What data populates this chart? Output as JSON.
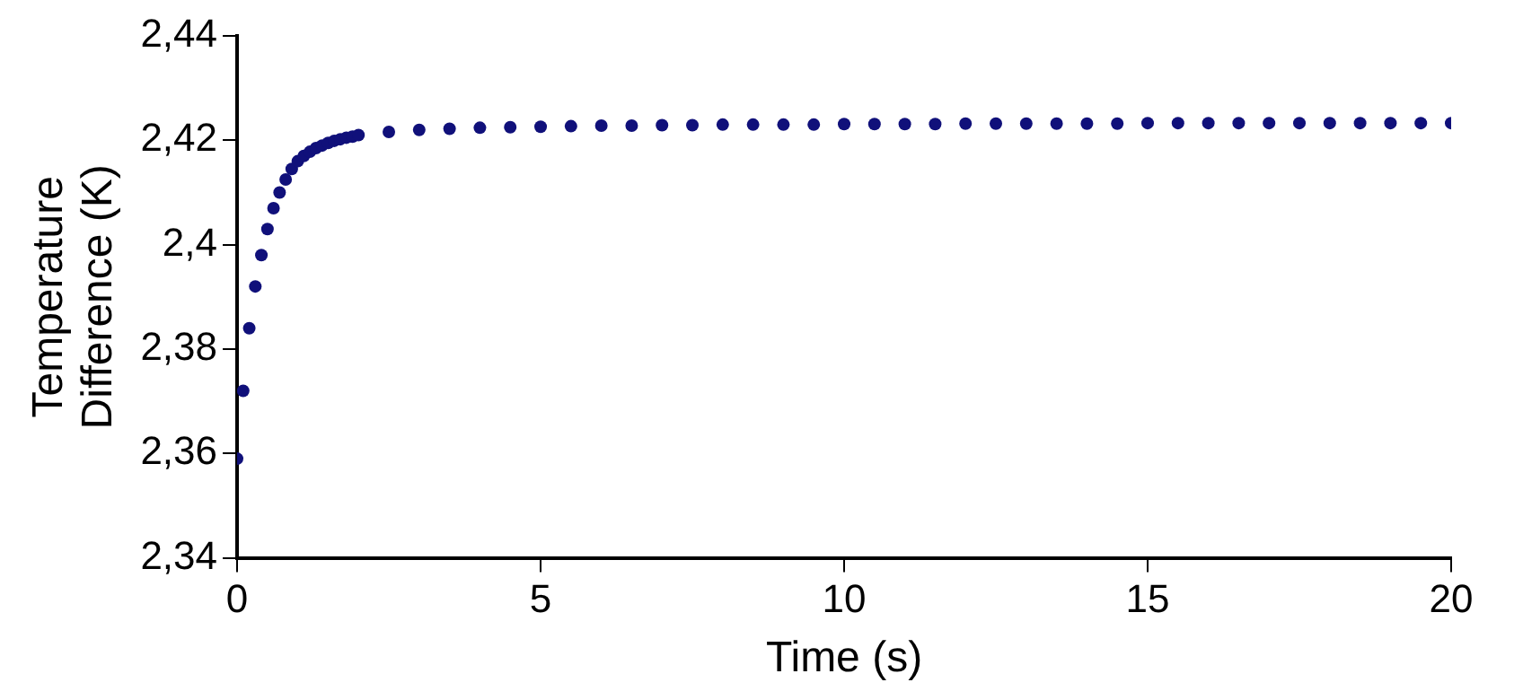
{
  "chart_data": {
    "type": "scatter",
    "xlabel": "Time (s)",
    "ylabel": "Temperature Difference (K)",
    "x": [
      0,
      0.1,
      0.2,
      0.3,
      0.4,
      0.5,
      0.6,
      0.7,
      0.8,
      0.9,
      1,
      1.1,
      1.2,
      1.3,
      1.4,
      1.5,
      1.6,
      1.7,
      1.8,
      1.9,
      2,
      2.5,
      3,
      3.5,
      4,
      4.5,
      5,
      5.5,
      6,
      6.5,
      7,
      7.5,
      8,
      8.5,
      9,
      9.5,
      10,
      10.5,
      11,
      11.5,
      12,
      12.5,
      13,
      13.5,
      14,
      14.5,
      15,
      15.5,
      16,
      16.5,
      17,
      17.5,
      18,
      18.5,
      19,
      19.5,
      20
    ],
    "series": [
      {
        "color": "#10107a",
        "values": [
          2.359,
          2.372,
          2.384,
          2.392,
          2.398,
          2.403,
          2.407,
          2.41,
          2.4125,
          2.4145,
          2.416,
          2.417,
          2.4178,
          2.4185,
          2.419,
          2.4195,
          2.4199,
          2.4202,
          2.4205,
          2.4207,
          2.421,
          2.4216,
          2.422,
          2.4222,
          2.4224,
          2.4225,
          2.4226,
          2.4227,
          2.4228,
          2.4228,
          2.4229,
          2.4229,
          2.423,
          2.423,
          2.423,
          2.423,
          2.4231,
          2.4231,
          2.4231,
          2.4231,
          2.4232,
          2.4232,
          2.4232,
          2.4232,
          2.4232,
          2.4232,
          2.4233,
          2.4233,
          2.4233,
          2.4233,
          2.4233,
          2.4233,
          2.4233,
          2.4233,
          2.4233,
          2.4233,
          2.4233
        ]
      }
    ],
    "xlim": [
      0,
      20
    ],
    "xticks": [
      0,
      5,
      10,
      15,
      20
    ],
    "ylim": [
      2.34,
      2.44
    ],
    "yticks": [
      {
        "value": 2.34,
        "label": "2,34"
      },
      {
        "value": 2.36,
        "label": "2,36"
      },
      {
        "value": 2.38,
        "label": "2,38"
      },
      {
        "value": 2.4,
        "label": "2,4"
      },
      {
        "value": 2.42,
        "label": "2,42"
      },
      {
        "value": 2.44,
        "label": "2,44"
      }
    ],
    "grid": false,
    "legend": false,
    "marker": "circle"
  }
}
